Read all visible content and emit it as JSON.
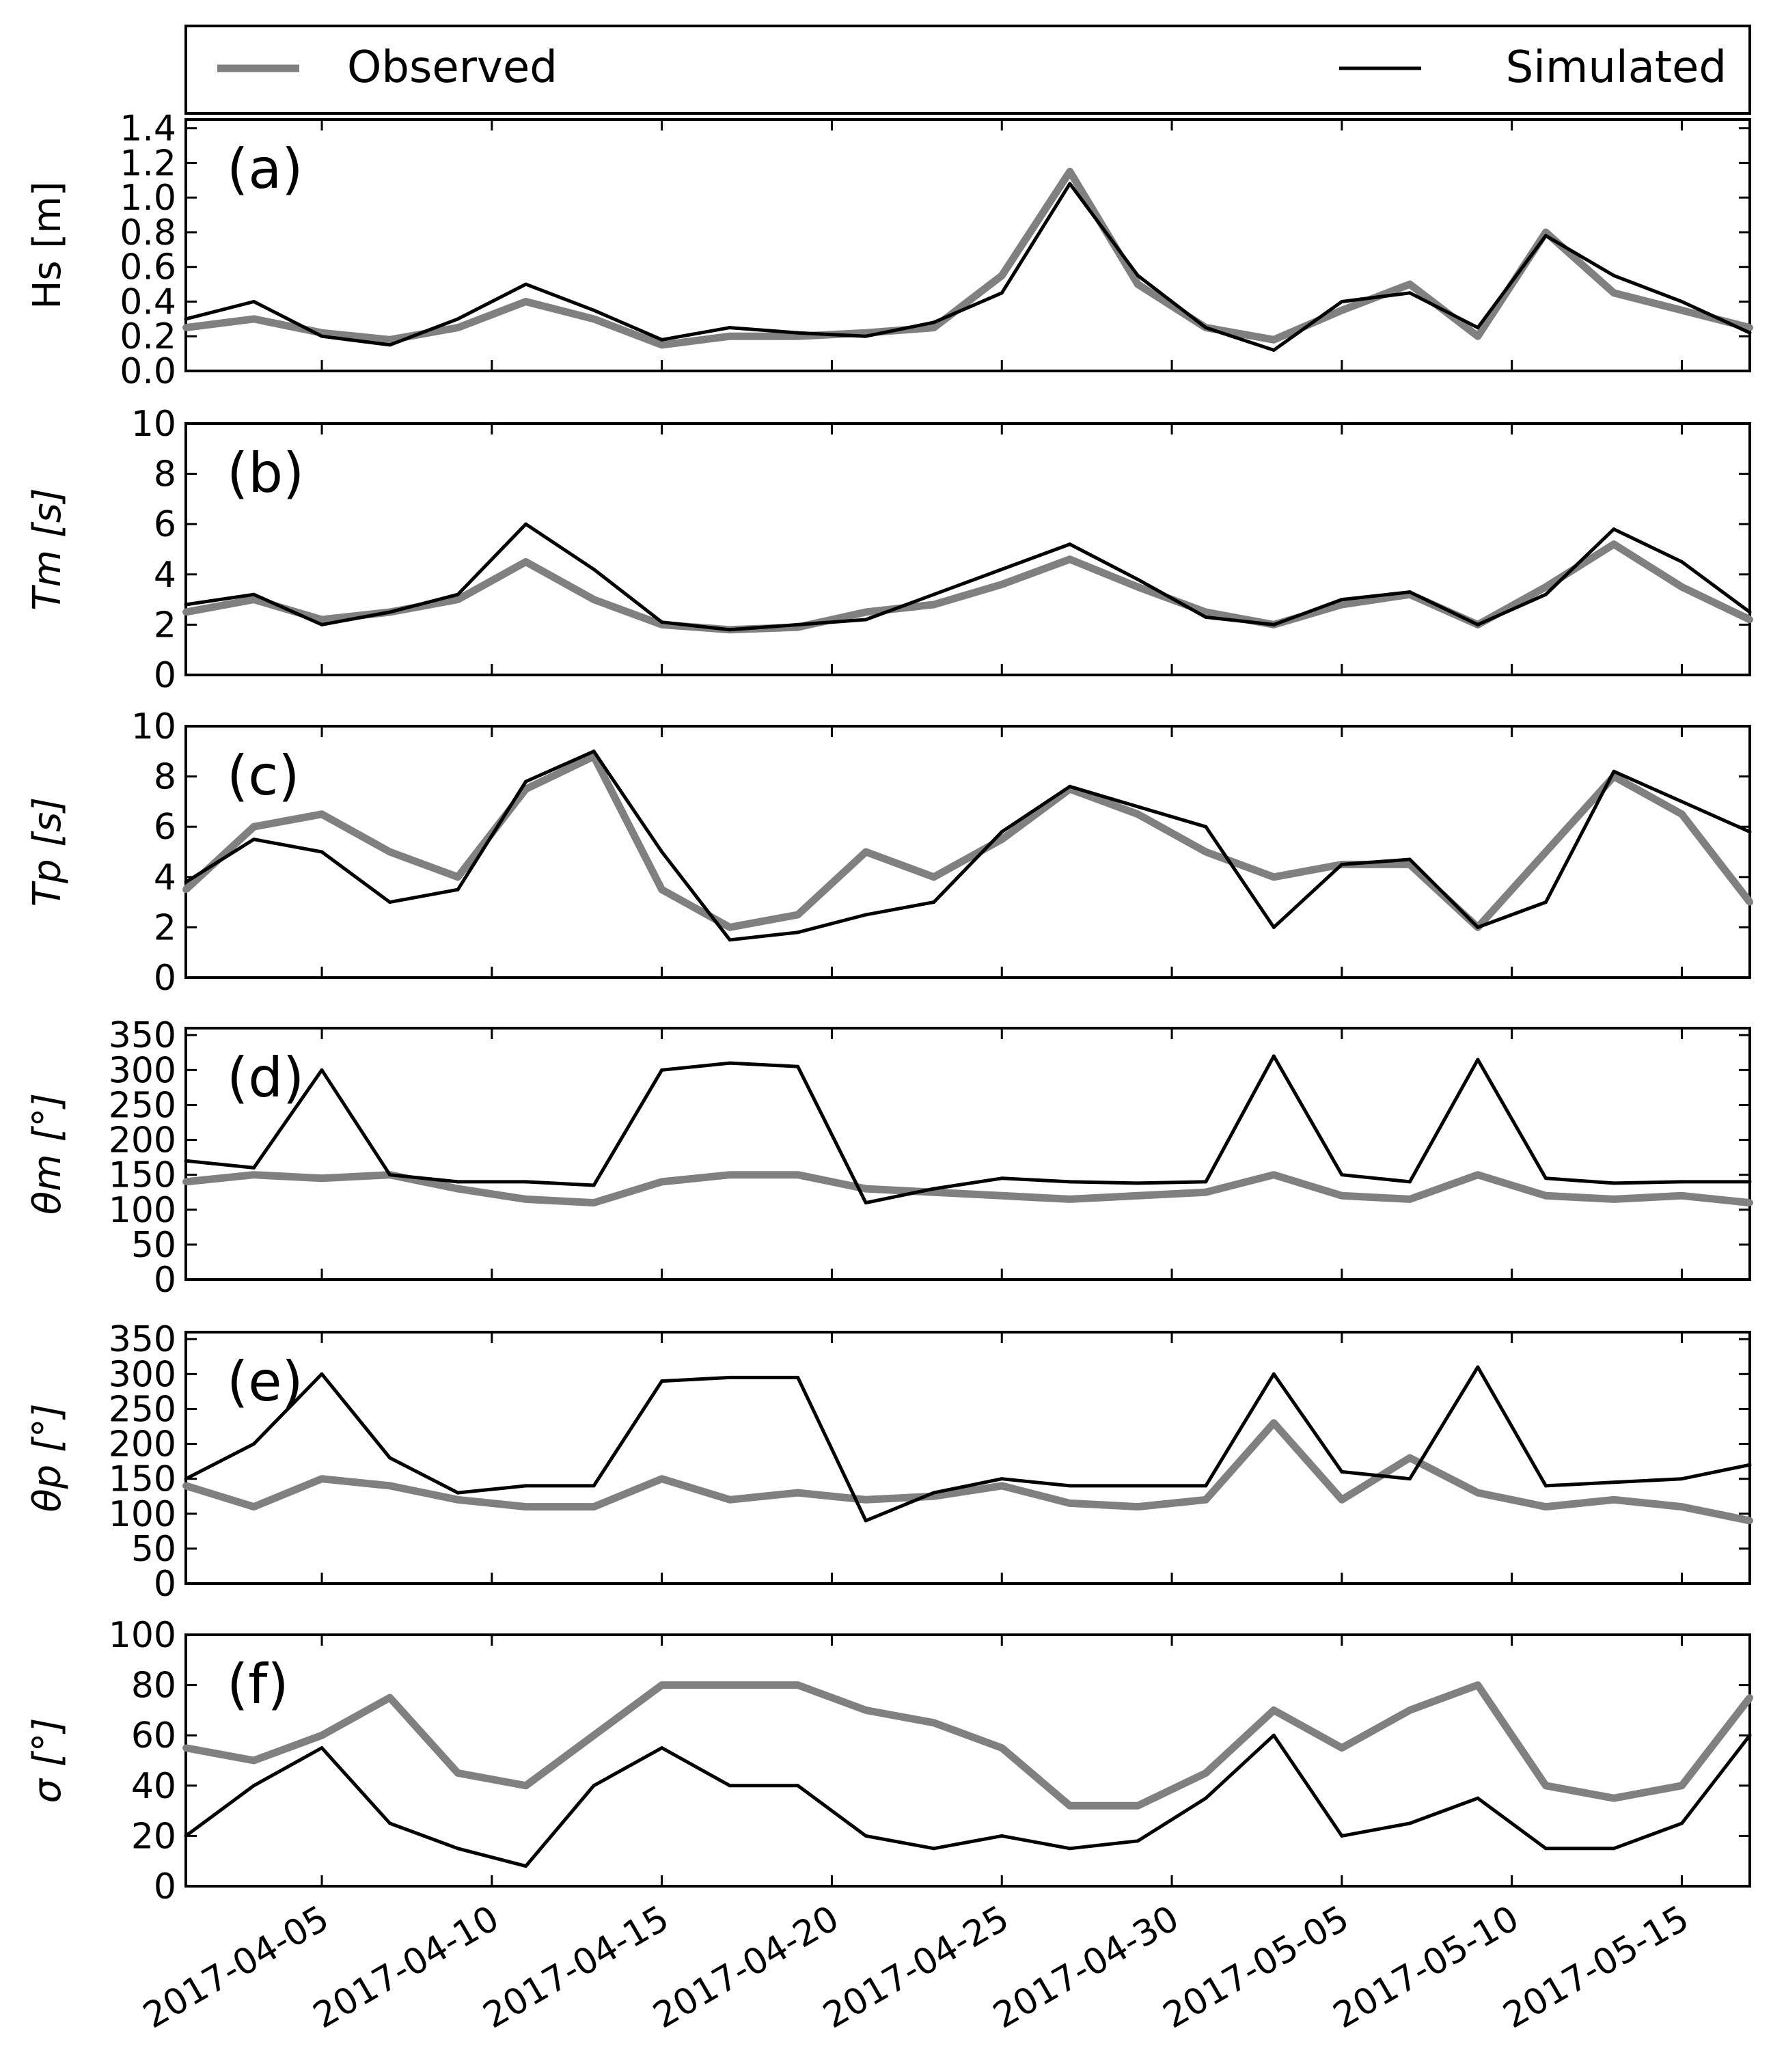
{
  "legend": {
    "observed_label": "Observed",
    "simulated_label": "Simulated",
    "observed_color": "#808080",
    "simulated_color": "#000000",
    "placement": "top, outside axes, spanning full width"
  },
  "x_axis": {
    "type": "date",
    "range": [
      "2017-04-01",
      "2017-05-17"
    ],
    "ticks": [
      "2017-04-05",
      "2017-04-10",
      "2017-04-15",
      "2017-04-20",
      "2017-04-25",
      "2017-04-30",
      "2017-05-05",
      "2017-05-10",
      "2017-05-15"
    ]
  },
  "chart_data": [
    {
      "type": "line",
      "panel_label": "(a)",
      "ylabel": "Hs [m]",
      "ylim": [
        0,
        1.45
      ],
      "yticks": [
        "0.0",
        "0.2",
        "0.4",
        "0.6",
        "0.8",
        "1.0",
        "1.2",
        "1.4"
      ],
      "x": [
        "2017-04-01",
        "2017-04-03",
        "2017-04-05",
        "2017-04-07",
        "2017-04-09",
        "2017-04-11",
        "2017-04-13",
        "2017-04-15",
        "2017-04-17",
        "2017-04-19",
        "2017-04-21",
        "2017-04-23",
        "2017-04-25",
        "2017-04-27",
        "2017-04-29",
        "2017-05-01",
        "2017-05-03",
        "2017-05-05",
        "2017-05-07",
        "2017-05-09",
        "2017-05-11",
        "2017-05-13",
        "2017-05-15",
        "2017-05-17"
      ],
      "series": [
        {
          "name": "Observed",
          "values": [
            0.25,
            0.3,
            0.22,
            0.18,
            0.25,
            0.4,
            0.3,
            0.15,
            0.2,
            0.2,
            0.22,
            0.25,
            0.55,
            1.15,
            0.5,
            0.25,
            0.18,
            0.35,
            0.5,
            0.2,
            0.8,
            0.45,
            0.35,
            0.25
          ]
        },
        {
          "name": "Simulated",
          "values": [
            0.3,
            0.4,
            0.2,
            0.15,
            0.3,
            0.5,
            0.35,
            0.18,
            0.25,
            0.22,
            0.2,
            0.28,
            0.45,
            1.08,
            0.55,
            0.25,
            0.12,
            0.4,
            0.45,
            0.25,
            0.78,
            0.55,
            0.4,
            0.22
          ]
        }
      ]
    },
    {
      "type": "line",
      "panel_label": "(b)",
      "ylabel": "Tm [s]",
      "ylim": [
        0,
        10
      ],
      "yticks": [
        "0",
        "2",
        "4",
        "6",
        "8",
        "10"
      ],
      "x": [
        "2017-04-01",
        "2017-04-03",
        "2017-04-05",
        "2017-04-07",
        "2017-04-09",
        "2017-04-11",
        "2017-04-13",
        "2017-04-15",
        "2017-04-17",
        "2017-04-19",
        "2017-04-21",
        "2017-04-23",
        "2017-04-25",
        "2017-04-27",
        "2017-04-29",
        "2017-05-01",
        "2017-05-03",
        "2017-05-05",
        "2017-05-07",
        "2017-05-09",
        "2017-05-11",
        "2017-05-13",
        "2017-05-15",
        "2017-05-17"
      ],
      "series": [
        {
          "name": "Observed",
          "values": [
            2.5,
            3.0,
            2.2,
            2.5,
            3.0,
            4.5,
            3.0,
            2.0,
            1.8,
            1.9,
            2.5,
            2.8,
            3.6,
            4.6,
            3.5,
            2.5,
            2.0,
            2.8,
            3.2,
            2.0,
            3.5,
            5.2,
            3.5,
            2.2
          ]
        },
        {
          "name": "Simulated",
          "values": [
            2.8,
            3.2,
            2.0,
            2.5,
            3.2,
            6.0,
            4.2,
            2.1,
            1.8,
            2.0,
            2.2,
            3.2,
            4.2,
            5.2,
            3.8,
            2.3,
            2.0,
            3.0,
            3.3,
            2.0,
            3.2,
            5.8,
            4.5,
            2.5
          ]
        }
      ]
    },
    {
      "type": "line",
      "panel_label": "(c)",
      "ylabel": "Tp [s]",
      "ylim": [
        0,
        10
      ],
      "yticks": [
        "0",
        "2",
        "4",
        "6",
        "8",
        "10"
      ],
      "x": [
        "2017-04-01",
        "2017-04-03",
        "2017-04-05",
        "2017-04-07",
        "2017-04-09",
        "2017-04-11",
        "2017-04-13",
        "2017-04-15",
        "2017-04-17",
        "2017-04-19",
        "2017-04-21",
        "2017-04-23",
        "2017-04-25",
        "2017-04-27",
        "2017-04-29",
        "2017-05-01",
        "2017-05-03",
        "2017-05-05",
        "2017-05-07",
        "2017-05-09",
        "2017-05-11",
        "2017-05-13",
        "2017-05-15",
        "2017-05-17"
      ],
      "series": [
        {
          "name": "Observed",
          "values": [
            3.5,
            6.0,
            6.5,
            5.0,
            4.0,
            7.5,
            8.8,
            3.5,
            2.0,
            2.5,
            5.0,
            4.0,
            5.5,
            7.5,
            6.5,
            5.0,
            4.0,
            4.5,
            4.5,
            2.0,
            5.0,
            8.0,
            6.5,
            3.0
          ]
        },
        {
          "name": "Simulated",
          "values": [
            3.8,
            5.5,
            5.0,
            3.0,
            3.5,
            7.8,
            9.0,
            5.0,
            1.5,
            1.8,
            2.5,
            3.0,
            5.8,
            7.6,
            6.8,
            6.0,
            2.0,
            4.5,
            4.7,
            2.0,
            3.0,
            8.2,
            7.0,
            5.8
          ]
        }
      ]
    },
    {
      "type": "line",
      "panel_label": "(d)",
      "ylabel": "θm [°]",
      "ylim": [
        0,
        360
      ],
      "yticks": [
        "0",
        "50",
        "100",
        "150",
        "200",
        "250",
        "300",
        "350"
      ],
      "x": [
        "2017-04-01",
        "2017-04-03",
        "2017-04-05",
        "2017-04-07",
        "2017-04-09",
        "2017-04-11",
        "2017-04-13",
        "2017-04-15",
        "2017-04-17",
        "2017-04-19",
        "2017-04-21",
        "2017-04-23",
        "2017-04-25",
        "2017-04-27",
        "2017-04-29",
        "2017-05-01",
        "2017-05-03",
        "2017-05-05",
        "2017-05-07",
        "2017-05-09",
        "2017-05-11",
        "2017-05-13",
        "2017-05-15",
        "2017-05-17"
      ],
      "series": [
        {
          "name": "Observed",
          "values": [
            140,
            150,
            145,
            150,
            130,
            115,
            110,
            140,
            150,
            150,
            130,
            125,
            120,
            115,
            120,
            125,
            150,
            120,
            115,
            150,
            120,
            115,
            120,
            110
          ]
        },
        {
          "name": "Simulated",
          "values": [
            170,
            160,
            300,
            150,
            140,
            140,
            135,
            300,
            310,
            305,
            110,
            130,
            145,
            140,
            138,
            140,
            320,
            150,
            140,
            315,
            145,
            138,
            140,
            140
          ]
        }
      ]
    },
    {
      "type": "line",
      "panel_label": "(e)",
      "ylabel": "θp [°]",
      "ylim": [
        0,
        360
      ],
      "yticks": [
        "0",
        "50",
        "100",
        "150",
        "200",
        "250",
        "300",
        "350"
      ],
      "x": [
        "2017-04-01",
        "2017-04-03",
        "2017-04-05",
        "2017-04-07",
        "2017-04-09",
        "2017-04-11",
        "2017-04-13",
        "2017-04-15",
        "2017-04-17",
        "2017-04-19",
        "2017-04-21",
        "2017-04-23",
        "2017-04-25",
        "2017-04-27",
        "2017-04-29",
        "2017-05-01",
        "2017-05-03",
        "2017-05-05",
        "2017-05-07",
        "2017-05-09",
        "2017-05-11",
        "2017-05-13",
        "2017-05-15",
        "2017-05-17"
      ],
      "series": [
        {
          "name": "Observed",
          "values": [
            140,
            110,
            150,
            140,
            120,
            110,
            110,
            150,
            120,
            130,
            120,
            125,
            140,
            115,
            110,
            120,
            230,
            120,
            180,
            130,
            110,
            120,
            110,
            90
          ]
        },
        {
          "name": "Simulated",
          "values": [
            150,
            200,
            300,
            180,
            130,
            140,
            140,
            290,
            295,
            295,
            90,
            130,
            150,
            140,
            140,
            140,
            300,
            160,
            150,
            310,
            140,
            145,
            150,
            170
          ]
        }
      ]
    },
    {
      "type": "line",
      "panel_label": "(f)",
      "ylabel": "σ [°]",
      "ylim": [
        0,
        100
      ],
      "yticks": [
        "0",
        "20",
        "40",
        "60",
        "80",
        "100"
      ],
      "x": [
        "2017-04-01",
        "2017-04-03",
        "2017-04-05",
        "2017-04-07",
        "2017-04-09",
        "2017-04-11",
        "2017-04-13",
        "2017-04-15",
        "2017-04-17",
        "2017-04-19",
        "2017-04-21",
        "2017-04-23",
        "2017-04-25",
        "2017-04-27",
        "2017-04-29",
        "2017-05-01",
        "2017-05-03",
        "2017-05-05",
        "2017-05-07",
        "2017-05-09",
        "2017-05-11",
        "2017-05-13",
        "2017-05-15",
        "2017-05-17"
      ],
      "series": [
        {
          "name": "Observed",
          "values": [
            55,
            50,
            60,
            75,
            45,
            40,
            60,
            80,
            80,
            80,
            70,
            65,
            55,
            32,
            32,
            45,
            70,
            55,
            70,
            80,
            40,
            35,
            40,
            75
          ]
        },
        {
          "name": "Simulated",
          "values": [
            20,
            40,
            55,
            25,
            15,
            8,
            40,
            55,
            40,
            40,
            20,
            15,
            20,
            15,
            18,
            35,
            60,
            20,
            25,
            35,
            15,
            15,
            25,
            60
          ]
        }
      ]
    }
  ]
}
